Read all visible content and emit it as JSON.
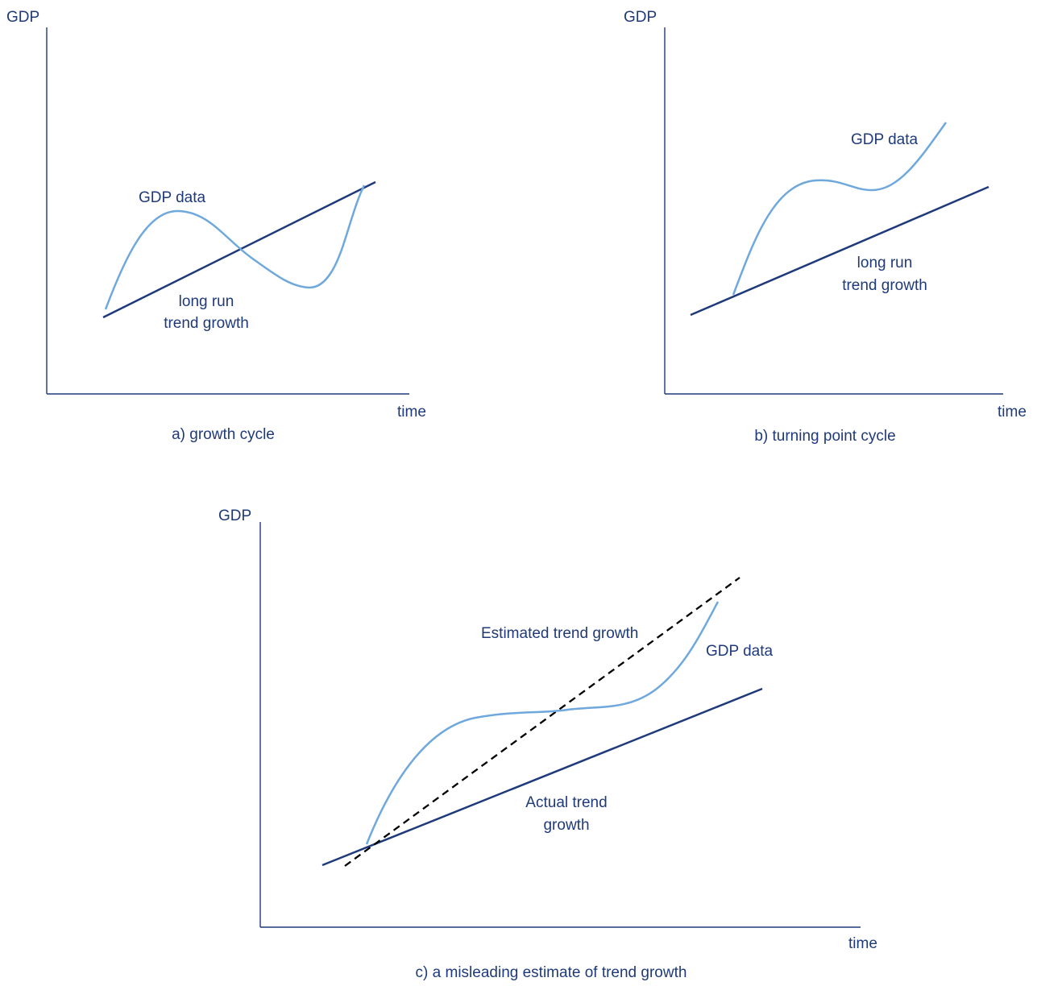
{
  "panels": {
    "a": {
      "y_axis_label": "GDP",
      "x_axis_label": "time",
      "curve_label": "GDP data",
      "trend_label_line1": "long run",
      "trend_label_line2": "trend growth",
      "caption": "a)  growth cycle"
    },
    "b": {
      "y_axis_label": "GDP",
      "x_axis_label": "time",
      "curve_label": "GDP data",
      "trend_label_line1": "long run",
      "trend_label_line2": "trend growth",
      "caption": "b)  turning point cycle"
    },
    "c": {
      "y_axis_label": "GDP",
      "x_axis_label": "time",
      "curve_label": "GDP data",
      "estimated_label": "Estimated trend growth",
      "trend_label_line1": "Actual trend",
      "trend_label_line2": "growth",
      "caption": "c)  a misleading estimate of trend growth"
    }
  },
  "colors": {
    "axis_and_text": "#1f3a7a",
    "trend_line": "#1f3a7a",
    "gdp_curve": "#6fa8dc",
    "estimated_trend": "#000000"
  }
}
